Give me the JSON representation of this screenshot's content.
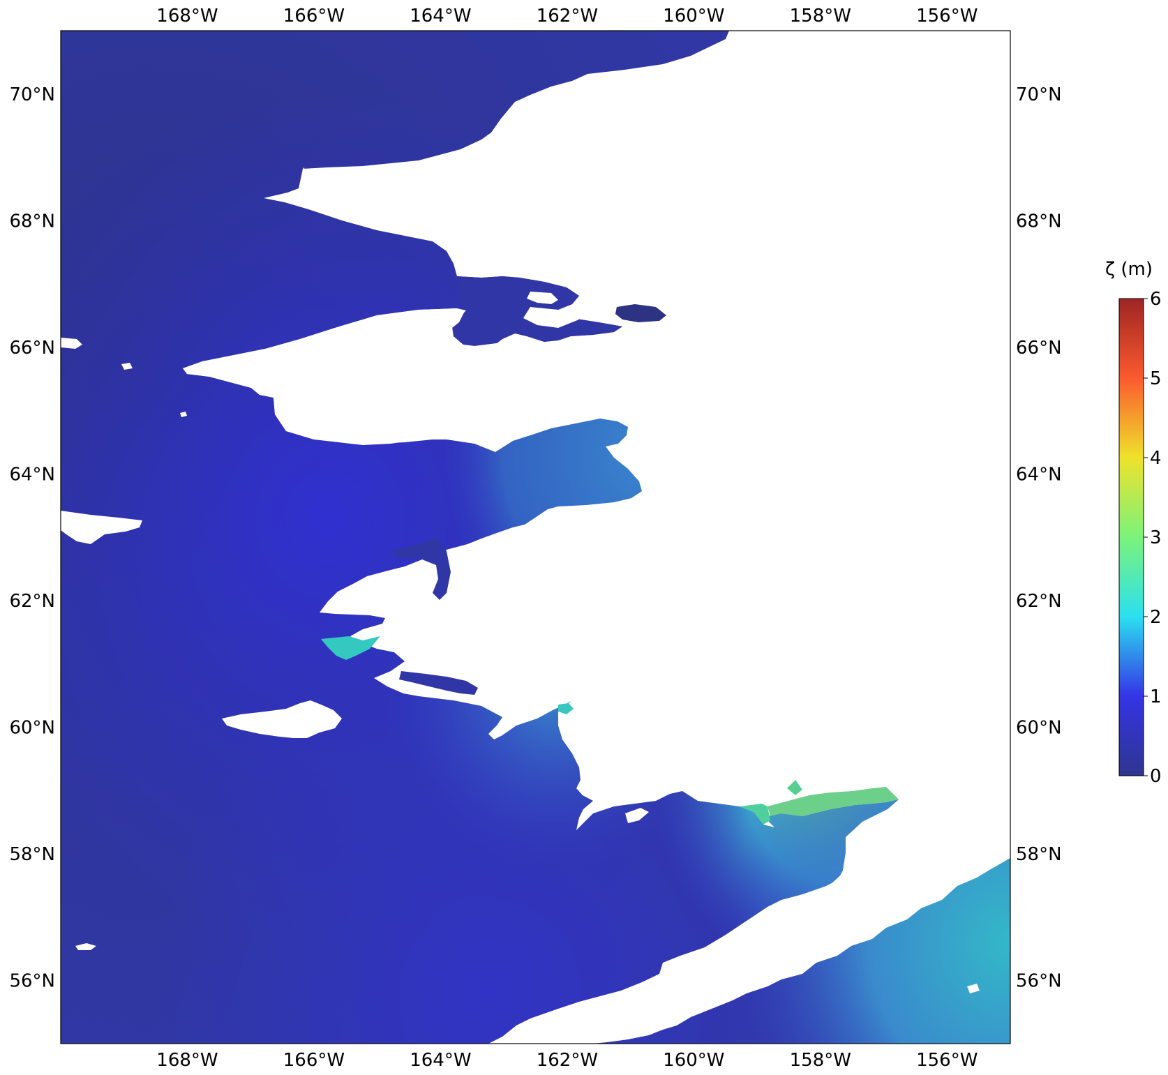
{
  "map": {
    "type": "filled-raster-map",
    "projection": "PlateCarree",
    "region": "Bering Sea / western Alaska coast",
    "lon_range": [
      -170.0,
      -155.0
    ],
    "lat_range": [
      55.0,
      71.0
    ],
    "x_ticks": [
      "168°W",
      "166°W",
      "164°W",
      "162°W",
      "160°W",
      "158°W",
      "156°W"
    ],
    "x_tick_values": [
      -168,
      -166,
      -164,
      -162,
      -160,
      -158,
      -156
    ],
    "y_ticks": [
      "70°N",
      "68°N",
      "66°N",
      "64°N",
      "62°N",
      "60°N",
      "58°N",
      "56°N"
    ],
    "y_tick_values": [
      70,
      68,
      66,
      64,
      62,
      60,
      58,
      56
    ],
    "land_color": "#ffffff",
    "ocean_base_color": "#2f3590"
  },
  "colorbar": {
    "label": "ζ (m)",
    "ticks": [
      "0",
      "1",
      "2",
      "3",
      "4",
      "5",
      "6"
    ],
    "tick_values": [
      0,
      1,
      2,
      3,
      4,
      5,
      6
    ],
    "range": [
      0,
      6
    ],
    "colormap": "turbo-like",
    "stops": [
      {
        "v": 0.0,
        "c": "#2f3590"
      },
      {
        "v": 1.0,
        "c": "#3434e6"
      },
      {
        "v": 2.0,
        "c": "#2be0f0"
      },
      {
        "v": 3.0,
        "c": "#7bf37a"
      },
      {
        "v": 4.0,
        "c": "#efe22b"
      },
      {
        "v": 5.0,
        "c": "#fb5a2e"
      },
      {
        "v": 6.0,
        "c": "#9e2424"
      }
    ]
  }
}
